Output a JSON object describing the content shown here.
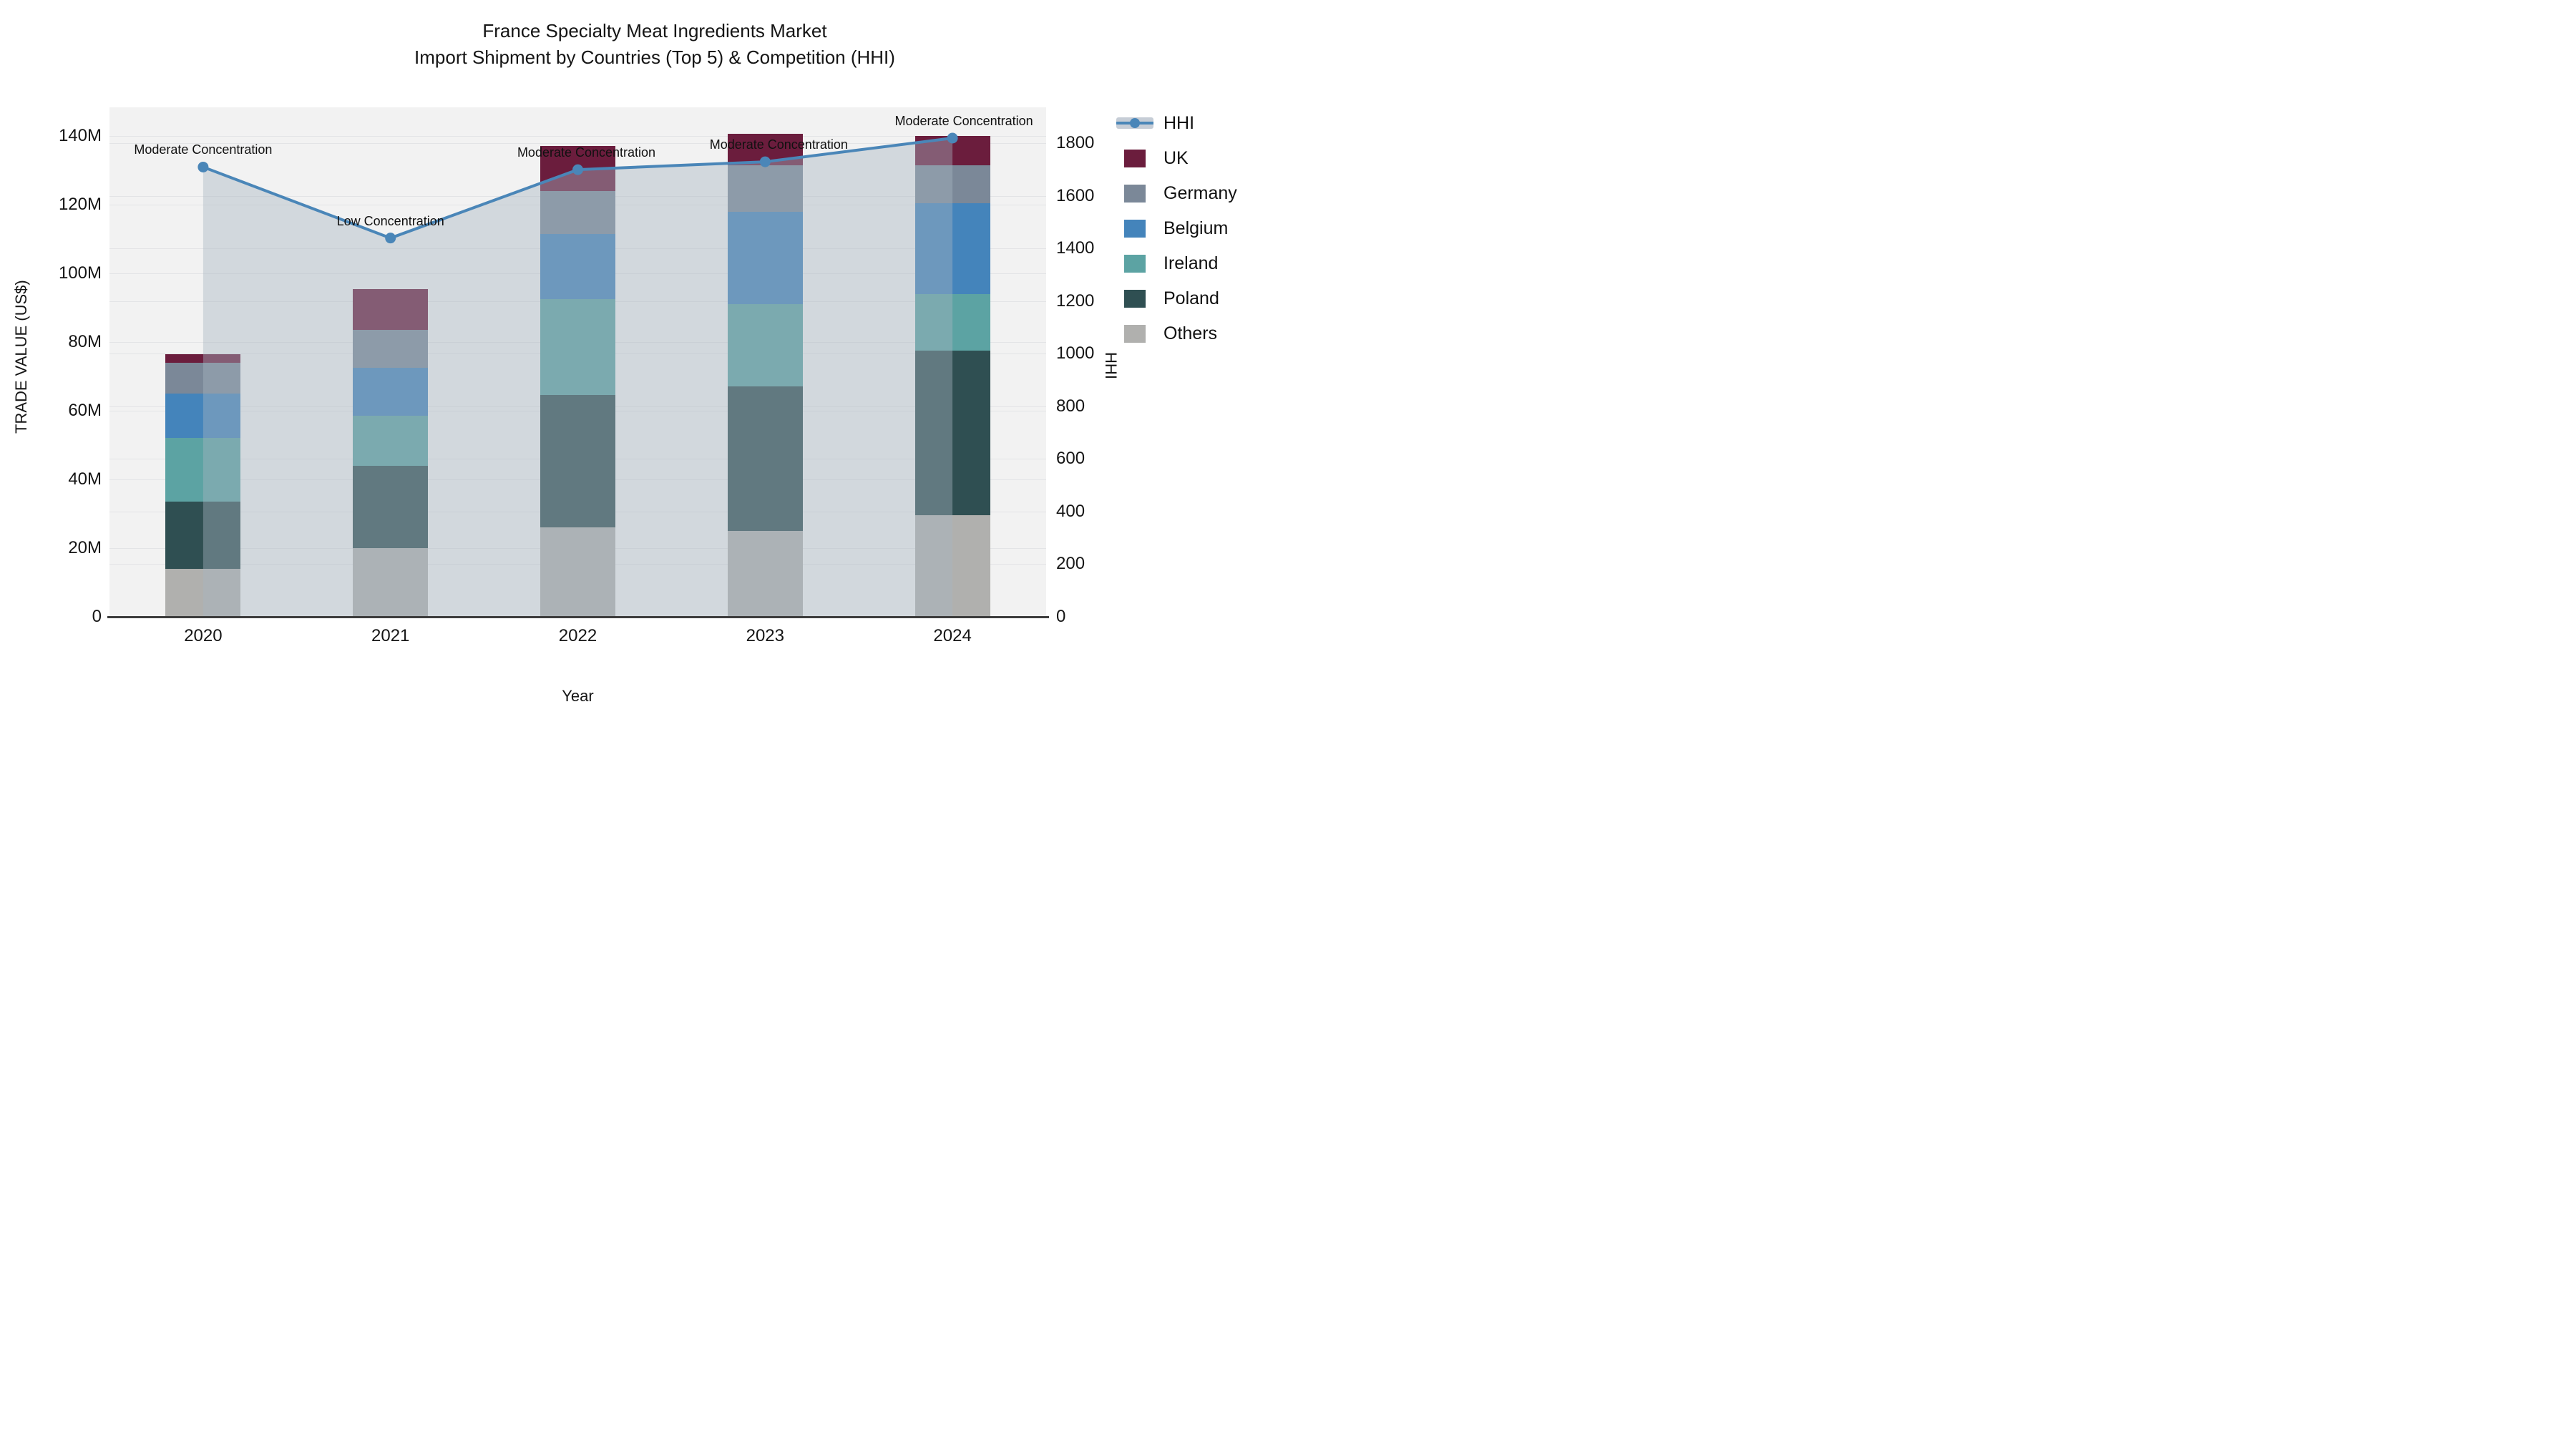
{
  "title": {
    "line1": "France Specialty Meat Ingredients Market",
    "line2": "Import Shipment by Countries (Top 5) & Competition (HHI)"
  },
  "axes": {
    "x_label": "Year",
    "y_left_label": "TRADE VALUE (US$)",
    "y_right_label": "HHI",
    "y_left_ticks": [
      {
        "v": 0,
        "label": "0"
      },
      {
        "v": 20,
        "label": "20M"
      },
      {
        "v": 40,
        "label": "40M"
      },
      {
        "v": 60,
        "label": "60M"
      },
      {
        "v": 80,
        "label": "80M"
      },
      {
        "v": 100,
        "label": "100M"
      },
      {
        "v": 120,
        "label": "120M"
      },
      {
        "v": 140,
        "label": "140M"
      }
    ],
    "y_right_ticks": [
      {
        "v": 0,
        "label": "0"
      },
      {
        "v": 200,
        "label": "200"
      },
      {
        "v": 400,
        "label": "400"
      },
      {
        "v": 600,
        "label": "600"
      },
      {
        "v": 800,
        "label": "800"
      },
      {
        "v": 1000,
        "label": "1000"
      },
      {
        "v": 1200,
        "label": "1200"
      },
      {
        "v": 1400,
        "label": "1400"
      },
      {
        "v": 1600,
        "label": "1600"
      },
      {
        "v": 1800,
        "label": "1800"
      }
    ]
  },
  "legend": [
    {
      "label": "HHI",
      "type": "line",
      "color": "#4a86b8"
    },
    {
      "label": "UK",
      "type": "box",
      "color": "#6b1d3d"
    },
    {
      "label": "Germany",
      "type": "box",
      "color": "#7b8898"
    },
    {
      "label": "Belgium",
      "type": "box",
      "color": "#4484bb"
    },
    {
      "label": "Ireland",
      "type": "box",
      "color": "#5ca3a3"
    },
    {
      "label": "Poland",
      "type": "box",
      "color": "#2f4f52"
    },
    {
      "label": "Others",
      "type": "box",
      "color": "#b0b0ae"
    }
  ],
  "chart_data": {
    "type": "bar+line",
    "title": "France Specialty Meat Ingredients Market — Import Shipment by Countries (Top 5) & Competition (HHI)",
    "xlabel": "Year",
    "ylabel_left": "TRADE VALUE (US$)",
    "ylabel_right": "HHI",
    "categories": [
      "2020",
      "2021",
      "2022",
      "2023",
      "2024"
    ],
    "stack_order_note": "series listed bottom-to-top of the stacked bars; values in millions US$",
    "series": [
      {
        "name": "Others",
        "color": "#b0b0ae",
        "values": [
          14,
          20,
          26,
          25,
          29.5
        ]
      },
      {
        "name": "Poland",
        "color": "#2f4f52",
        "values": [
          19.5,
          24,
          38.5,
          42,
          48
        ]
      },
      {
        "name": "Ireland",
        "color": "#5ca3a3",
        "values": [
          18.5,
          14.5,
          28,
          24,
          16.5
        ]
      },
      {
        "name": "Belgium",
        "color": "#4484bb",
        "values": [
          13,
          14,
          19,
          27,
          26.5
        ]
      },
      {
        "name": "Germany",
        "color": "#7b8898",
        "values": [
          9,
          11,
          12.5,
          13.5,
          11
        ]
      },
      {
        "name": "UK",
        "color": "#6b1d3d",
        "values": [
          2.5,
          12,
          13,
          9,
          8.5
        ]
      }
    ],
    "bar_totals": [
      76.5,
      95.5,
      137,
      140.5,
      140
    ],
    "hhi": {
      "name": "HHI",
      "color": "#4a86b8",
      "area_color": "rgba(168,180,194,0.42)",
      "values": [
        1710,
        1440,
        1700,
        1730,
        1820
      ]
    },
    "annotations": [
      {
        "year": "2020",
        "text": "Moderate Concentration",
        "dx": 0
      },
      {
        "year": "2021",
        "text": "Low Concentration",
        "dx": 0
      },
      {
        "year": "2022",
        "text": "Moderate Concentration",
        "dx": 12
      },
      {
        "year": "2023",
        "text": "Moderate Concentration",
        "dx": 19
      },
      {
        "year": "2024",
        "text": "Moderate Concentration",
        "dx": 16
      }
    ],
    "ylim_left": [
      0,
      148.3
    ],
    "ylim_right": [
      0,
      1937
    ],
    "grid": true,
    "legend_position": "right"
  }
}
